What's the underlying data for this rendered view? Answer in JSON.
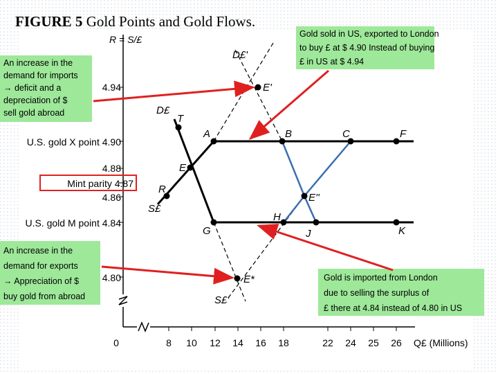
{
  "title": {
    "figure": "FIGURE 5",
    "text": "Gold Points and Gold Flows."
  },
  "axes": {
    "y_label": "R = S/£",
    "x_label": "Q£ (Millions)",
    "y_ticks": [
      "4.94",
      "U.S. gold X point 4.90",
      "4.88",
      "Mint parity 4.87",
      "4.86",
      "U.S. gold M point 4.84",
      "4.80"
    ],
    "x_ticks": [
      "0",
      "8",
      "10",
      "12",
      "14",
      "16",
      "18",
      "22",
      "24",
      "25",
      "26"
    ]
  },
  "points": {
    "D_prime": "D£'",
    "E_prime": "E'",
    "D": "D£",
    "T": "T",
    "A": "A",
    "B": "B",
    "C": "C",
    "F": "F",
    "E": "E",
    "R": "R",
    "S": "S£",
    "E_double": "E''",
    "H": "H",
    "G": "G",
    "J": "J",
    "K": "K",
    "E_star": "E*",
    "S_prime": "S£'"
  },
  "callouts": {
    "imports": [
      "An increase in the",
      "demand for imports",
      "→ deficit and a",
      "depreciation of $",
      "sell gold abroad"
    ],
    "exports": [
      "An increase in the",
      "demand for exports",
      "→ Appreciation of $",
      "buy gold from abroad"
    ],
    "sold": [
      "Gold sold in US, exported to London",
      "to buy £ at $ 4.90 Instead of buying",
      "£ in US at $ 4.94"
    ],
    "imported": [
      "Gold is imported from London",
      "due to selling the surplus of",
      "£ there at 4.84 instead of 4.80 in US"
    ]
  }
}
